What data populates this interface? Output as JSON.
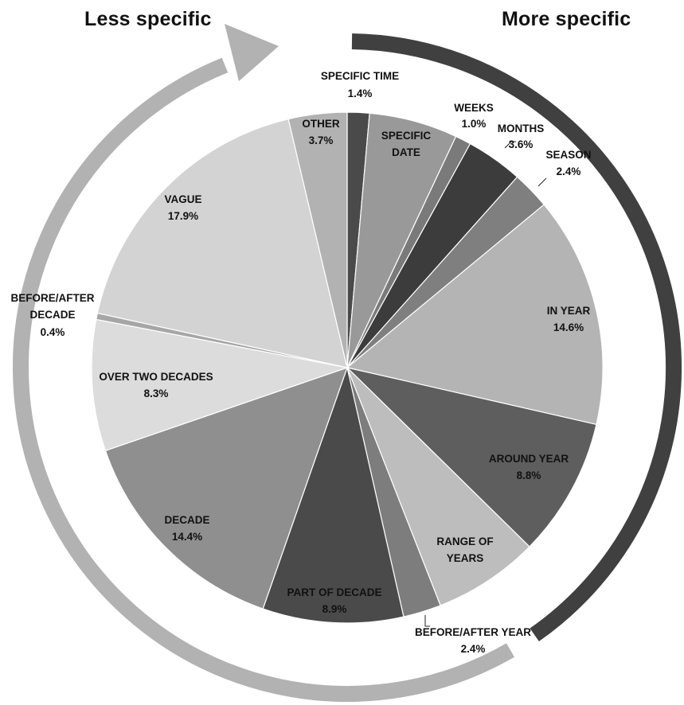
{
  "labels": {
    "less_specific": "Less specific",
    "more_specific": "More specific"
  },
  "colors": {
    "less_arc": "#b2b2b2",
    "more_arc": "#404040",
    "slice_stroke": "#ffffff"
  },
  "chart_data": {
    "type": "pie",
    "title": "",
    "start": "12 o'clock, clockwise",
    "slices": [
      {
        "label": "SPECIFIC TIME",
        "value": 1.4,
        "display": "1.4%",
        "color": "#4a4a4a"
      },
      {
        "label": "SPECIFIC DATE",
        "value": 5.6,
        "display": "5.6%",
        "color": "#999999"
      },
      {
        "label": "WEEKS",
        "value": 1.0,
        "display": "1.0%",
        "color": "#7a7a7a"
      },
      {
        "label": "MONTHS",
        "value": 3.6,
        "display": "3.6%",
        "color": "#3c3c3c"
      },
      {
        "label": "SEASON",
        "value": 2.4,
        "display": "2.4%",
        "color": "#7f7f7f"
      },
      {
        "label": "IN YEAR",
        "value": 14.6,
        "display": "14.6%",
        "color": "#b4b4b4"
      },
      {
        "label": "AROUND YEAR",
        "value": 8.8,
        "display": "8.8%",
        "color": "#5e5e5e"
      },
      {
        "label": "RANGE OF YEARS",
        "value": 6.7,
        "display": "6.7%",
        "color": "#bdbdbd"
      },
      {
        "label": "BEFORE/AFTER YEAR",
        "value": 2.4,
        "display": "2.4%",
        "color": "#7d7d7d"
      },
      {
        "label": "PART OF DECADE",
        "value": 8.9,
        "display": "8.9%",
        "color": "#4a4a4a"
      },
      {
        "label": "DECADE",
        "value": 14.4,
        "display": "14.4%",
        "color": "#8f8f8f"
      },
      {
        "label": "OVER TWO DECADES",
        "value": 8.3,
        "display": "8.3%",
        "color": "#dcdcdc"
      },
      {
        "label": "BEFORE/AFTER DECADE",
        "value": 0.4,
        "display": "0.4%",
        "color": "#a6a6a6"
      },
      {
        "label": "VAGUE",
        "value": 17.9,
        "display": "17.9%",
        "color": "#d3d3d3"
      },
      {
        "label": "OTHER",
        "value": 3.7,
        "display": "3.7%",
        "color": "#b2b2b2"
      }
    ]
  }
}
